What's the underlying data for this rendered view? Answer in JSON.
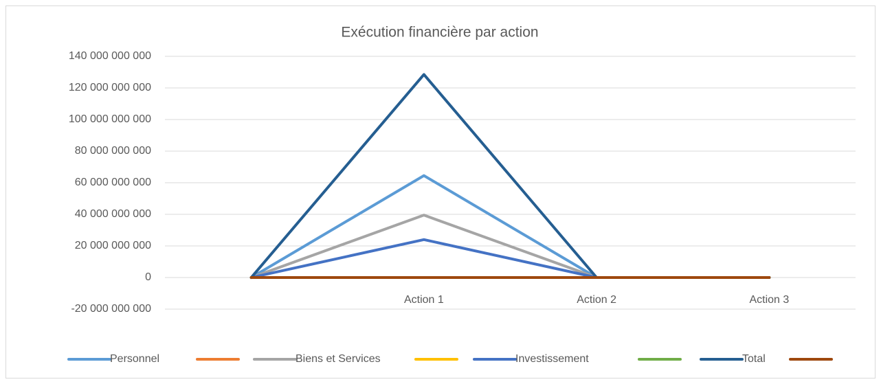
{
  "chart_data": {
    "type": "line",
    "title": "Exécution financière par action",
    "categories": [
      null,
      "Action 1",
      "Action 2",
      "Action 3"
    ],
    "series": [
      {
        "name": "Personnel",
        "color": "#5b9bd5",
        "values": [
          0,
          64500000000,
          0,
          0
        ]
      },
      {
        "name": null,
        "color": "#ed7d31",
        "values": [
          0,
          0,
          0,
          0
        ]
      },
      {
        "name": "Biens et Services",
        "color": "#a5a5a5",
        "values": [
          0,
          39500000000,
          0,
          0
        ]
      },
      {
        "name": null,
        "color": "#ffc000",
        "values": [
          0,
          0,
          0,
          0
        ]
      },
      {
        "name": "Investissement",
        "color": "#4472c4",
        "values": [
          0,
          24000000000,
          0,
          0
        ]
      },
      {
        "name": null,
        "color": "#70ad47",
        "values": [
          0,
          0,
          0,
          0
        ]
      },
      {
        "name": "Total",
        "color": "#255e91",
        "values": [
          0,
          128500000000,
          0,
          0
        ]
      },
      {
        "name": null,
        "color": "#9e480e",
        "values": [
          0,
          0,
          0,
          0
        ]
      }
    ],
    "ylim": [
      -20000000000,
      140000000000
    ],
    "yticks": [
      {
        "value": -20000000000,
        "label": "-20 000 000 000"
      },
      0,
      {
        "value": 20000000000,
        "label": "20 000 000 000"
      },
      {
        "value": 40000000000,
        "label": "40 000 000 000"
      },
      {
        "value": 60000000000,
        "label": "60 000 000 000"
      },
      {
        "value": 80000000000,
        "label": "80 000 000 000"
      },
      {
        "value": 100000000000,
        "label": "100 000 000 000"
      },
      {
        "value": 120000000000,
        "label": "120 000 000 000"
      },
      {
        "value": 140000000000,
        "label": "140 000 000 000"
      }
    ],
    "grid": true,
    "legend": "bottom"
  }
}
